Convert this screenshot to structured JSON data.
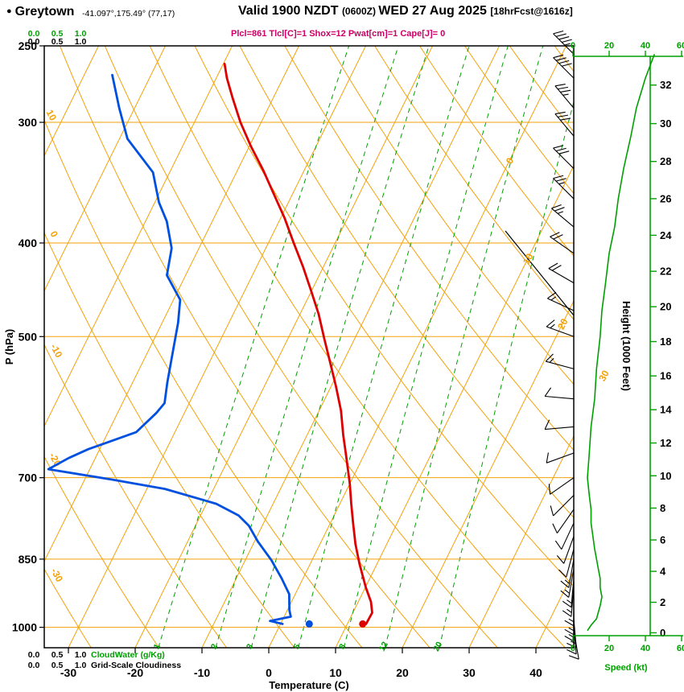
{
  "header": {
    "bullet": "●",
    "station": "Greytown",
    "coords": "-41.097°,175.49° (77,17)",
    "valid_1": "Valid 1900 NZDT ",
    "valid_zulu": "(0600Z) ",
    "valid_2": "WED 27 Aug 2025 ",
    "fcst_tag": "[18hrFcst@1616z]",
    "params": "Plcl=861 Tlcl[C]=1 Shox=12 Pwat[cm]=1 Cape[J]= 0"
  },
  "axes": {
    "pressure_title": "P (hPa)",
    "temp_title": "Temperature (C)",
    "height_title": "Height (1000 Feet)",
    "speed_title": "Speed (kt)",
    "cloudwater_title": "CloudWater (g/Kg)",
    "cloudiness_title": "Grid-Scale Cloudiness",
    "cloud_scale": [
      "0.0",
      "0.5",
      "1.0"
    ]
  },
  "colors": {
    "orange": "#F2A20A",
    "green": "#00A000",
    "red": "#DD0000",
    "blue": "#0050E0",
    "magenta": "#CC0066",
    "black": "#000000"
  },
  "chart_data": {
    "type": "skewt-log-p",
    "pressure_range": [
      250,
      1050
    ],
    "temp_axis_range_c": [
      -33,
      45
    ],
    "pressure_ticks": [
      250,
      300,
      400,
      500,
      700,
      850,
      1000
    ],
    "pressure_gridlines": [
      300,
      400,
      500,
      700,
      850,
      1000
    ],
    "temp_ticks": [
      -30,
      -20,
      -10,
      0,
      10,
      20,
      30,
      40
    ],
    "height_ticks_kft": [
      0,
      2,
      4,
      6,
      8,
      10,
      12,
      14,
      16,
      18,
      20,
      22,
      24,
      26,
      28,
      30,
      32
    ],
    "speed_ticks_kt": [
      0,
      20,
      40,
      60
    ],
    "isotherm_step_c": 10,
    "dry_adiabat_step_c": 10,
    "mixing_ratio_lines": [
      1,
      2,
      3,
      5,
      8,
      12,
      20
    ],
    "isotherm_labels": [
      {
        "t": 0,
        "p": 330
      },
      {
        "t": 10,
        "p": 417
      },
      {
        "t": 20,
        "p": 487
      },
      {
        "t": 30,
        "p": 551
      }
    ],
    "adiabat_labels": [
      {
        "theta": 10,
        "p": 296
      },
      {
        "theta": 0,
        "p": 393
      },
      {
        "theta": -10,
        "p": 519
      },
      {
        "theta": -20,
        "p": 673
      },
      {
        "theta": -30,
        "p": 886
      }
    ],
    "temperature_profile": [
      [
        992,
        12.8
      ],
      [
        966,
        12.9
      ],
      [
        941,
        11.9
      ],
      [
        910,
        10.1
      ],
      [
        860,
        7.4
      ],
      [
        820,
        5.3
      ],
      [
        780,
        3.4
      ],
      [
        745,
        1.7
      ],
      [
        710,
        0.0
      ],
      [
        663,
        -2.7
      ],
      [
        632,
        -4.6
      ],
      [
        597,
        -6.7
      ],
      [
        564,
        -9.2
      ],
      [
        532,
        -11.9
      ],
      [
        503,
        -14.5
      ],
      [
        474,
        -17.2
      ],
      [
        448,
        -20.1
      ],
      [
        423,
        -23.1
      ],
      [
        400,
        -26.2
      ],
      [
        377,
        -29.4
      ],
      [
        356,
        -32.8
      ],
      [
        336,
        -36.2
      ],
      [
        318,
        -39.7
      ],
      [
        300,
        -43.1
      ],
      [
        283,
        -46.1
      ],
      [
        270,
        -48.4
      ],
      [
        261,
        -49.8
      ]
    ],
    "dewpoint_profile": [
      [
        992,
        0.3
      ],
      [
        985,
        -1.8
      ],
      [
        975,
        1.0
      ],
      [
        960,
        0.3
      ],
      [
        924,
        -0.9
      ],
      [
        890,
        -3.2
      ],
      [
        852,
        -6.1
      ],
      [
        815,
        -9.5
      ],
      [
        785,
        -12.0
      ],
      [
        766,
        -14.3
      ],
      [
        745,
        -18.5
      ],
      [
        719,
        -27.3
      ],
      [
        703,
        -36.0
      ],
      [
        686,
        -46.2
      ],
      [
        668,
        -44.0
      ],
      [
        654,
        -41.7
      ],
      [
        628,
        -35.8
      ],
      [
        600,
        -34.2
      ],
      [
        586,
        -33.7
      ],
      [
        558,
        -34.8
      ],
      [
        520,
        -36.2
      ],
      [
        484,
        -37.6
      ],
      [
        458,
        -39.0
      ],
      [
        432,
        -42.8
      ],
      [
        405,
        -44.1
      ],
      [
        380,
        -46.8
      ],
      [
        363,
        -49.4
      ],
      [
        338,
        -52.5
      ],
      [
        312,
        -58.8
      ],
      [
        290,
        -62.3
      ],
      [
        268,
        -65.8
      ]
    ],
    "surface_temperature_dot": [
      992,
      12.3
    ],
    "surface_dewpoint_dot": [
      992,
      4.3
    ],
    "wind_barbs": [
      [
        255,
        315,
        45
      ],
      [
        270,
        315,
        40
      ],
      [
        290,
        320,
        35
      ],
      [
        310,
        320,
        32
      ],
      [
        335,
        315,
        28
      ],
      [
        360,
        315,
        25
      ],
      [
        385,
        310,
        23
      ],
      [
        410,
        305,
        20
      ],
      [
        440,
        300,
        18
      ],
      [
        470,
        295,
        16
      ],
      [
        500,
        290,
        15
      ],
      [
        540,
        285,
        13
      ],
      [
        580,
        275,
        12
      ],
      [
        620,
        265,
        10
      ],
      [
        660,
        250,
        9
      ],
      [
        700,
        235,
        8
      ],
      [
        730,
        225,
        9
      ],
      [
        755,
        215,
        10
      ],
      [
        780,
        205,
        10
      ],
      [
        805,
        200,
        11
      ],
      [
        830,
        195,
        12
      ],
      [
        850,
        190,
        13
      ],
      [
        870,
        190,
        14
      ],
      [
        890,
        185,
        15
      ],
      [
        910,
        185,
        15
      ],
      [
        930,
        180,
        16
      ],
      [
        950,
        180,
        15
      ],
      [
        965,
        180,
        14
      ],
      [
        980,
        175,
        13
      ],
      [
        995,
        175,
        10
      ],
      [
        1008,
        170,
        8
      ]
    ]
  }
}
